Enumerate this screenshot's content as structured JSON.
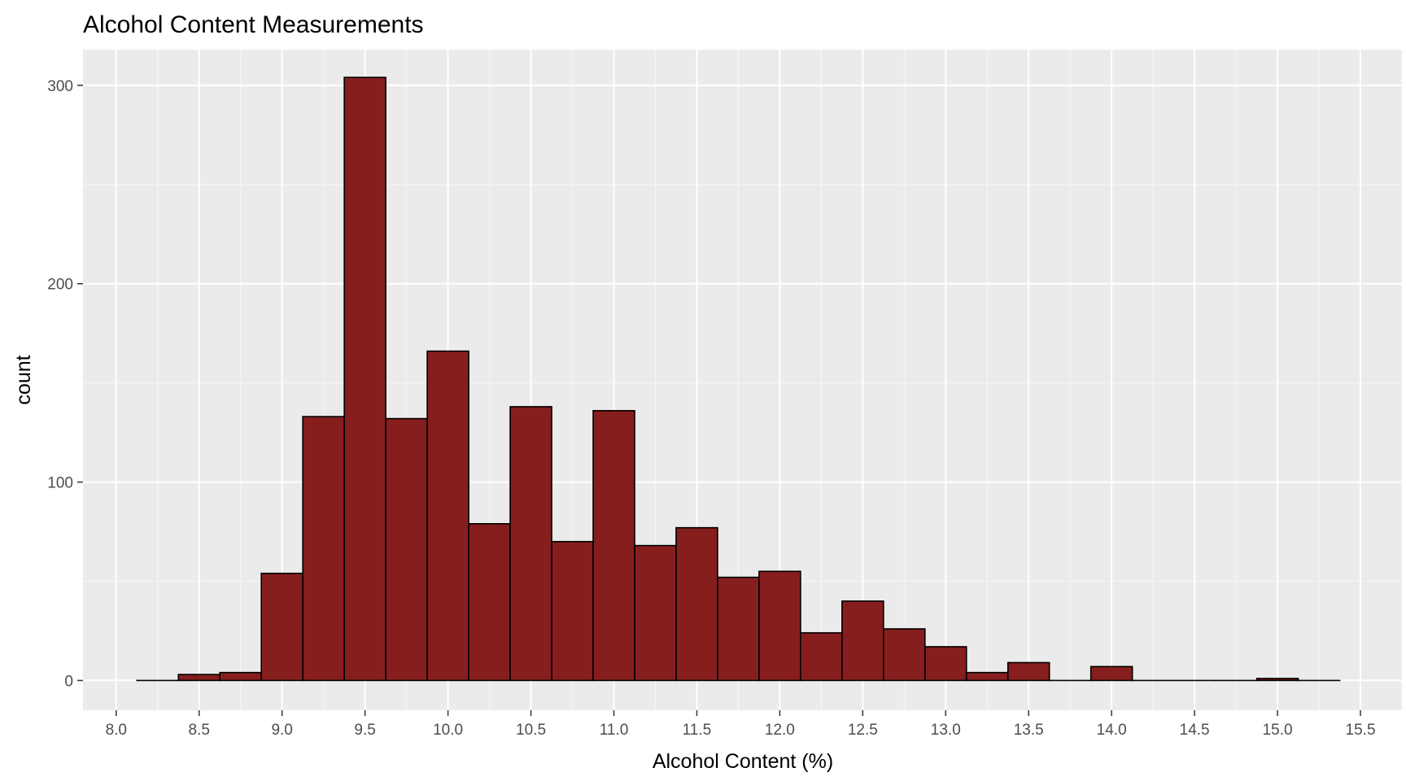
{
  "chart_data": {
    "type": "bar",
    "subtype": "histogram",
    "title": "Alcohol Content Measurements",
    "xlabel": "Alcohol Content (%)",
    "ylabel": "count",
    "xlim": [
      7.8,
      15.75
    ],
    "ylim": [
      -15,
      318
    ],
    "x_ticks": [
      "8.0",
      "8.5",
      "9.0",
      "9.5",
      "10.0",
      "10.5",
      "11.0",
      "11.5",
      "12.0",
      "12.5",
      "13.0",
      "13.5",
      "14.0",
      "14.5",
      "15.0",
      "15.5"
    ],
    "y_ticks": [
      "0",
      "100",
      "200",
      "300"
    ],
    "bin_width": 0.25,
    "bin_centers": [
      8.25,
      8.5,
      8.75,
      9.0,
      9.25,
      9.5,
      9.75,
      10.0,
      10.25,
      10.5,
      10.75,
      11.0,
      11.25,
      11.5,
      11.75,
      12.0,
      12.25,
      12.5,
      12.75,
      13.0,
      13.25,
      13.5,
      13.75,
      14.0,
      14.25,
      14.5,
      14.75,
      15.0,
      15.25
    ],
    "values": [
      0,
      3,
      4,
      54,
      133,
      304,
      132,
      166,
      79,
      138,
      70,
      136,
      68,
      77,
      52,
      55,
      24,
      40,
      26,
      17,
      4,
      9,
      0,
      7,
      0,
      0,
      0,
      1,
      0
    ],
    "bar_fill": "#861e1e",
    "bar_outline": "#000000",
    "panel_background": "#ebebeb",
    "grid": true,
    "legend": "none"
  }
}
